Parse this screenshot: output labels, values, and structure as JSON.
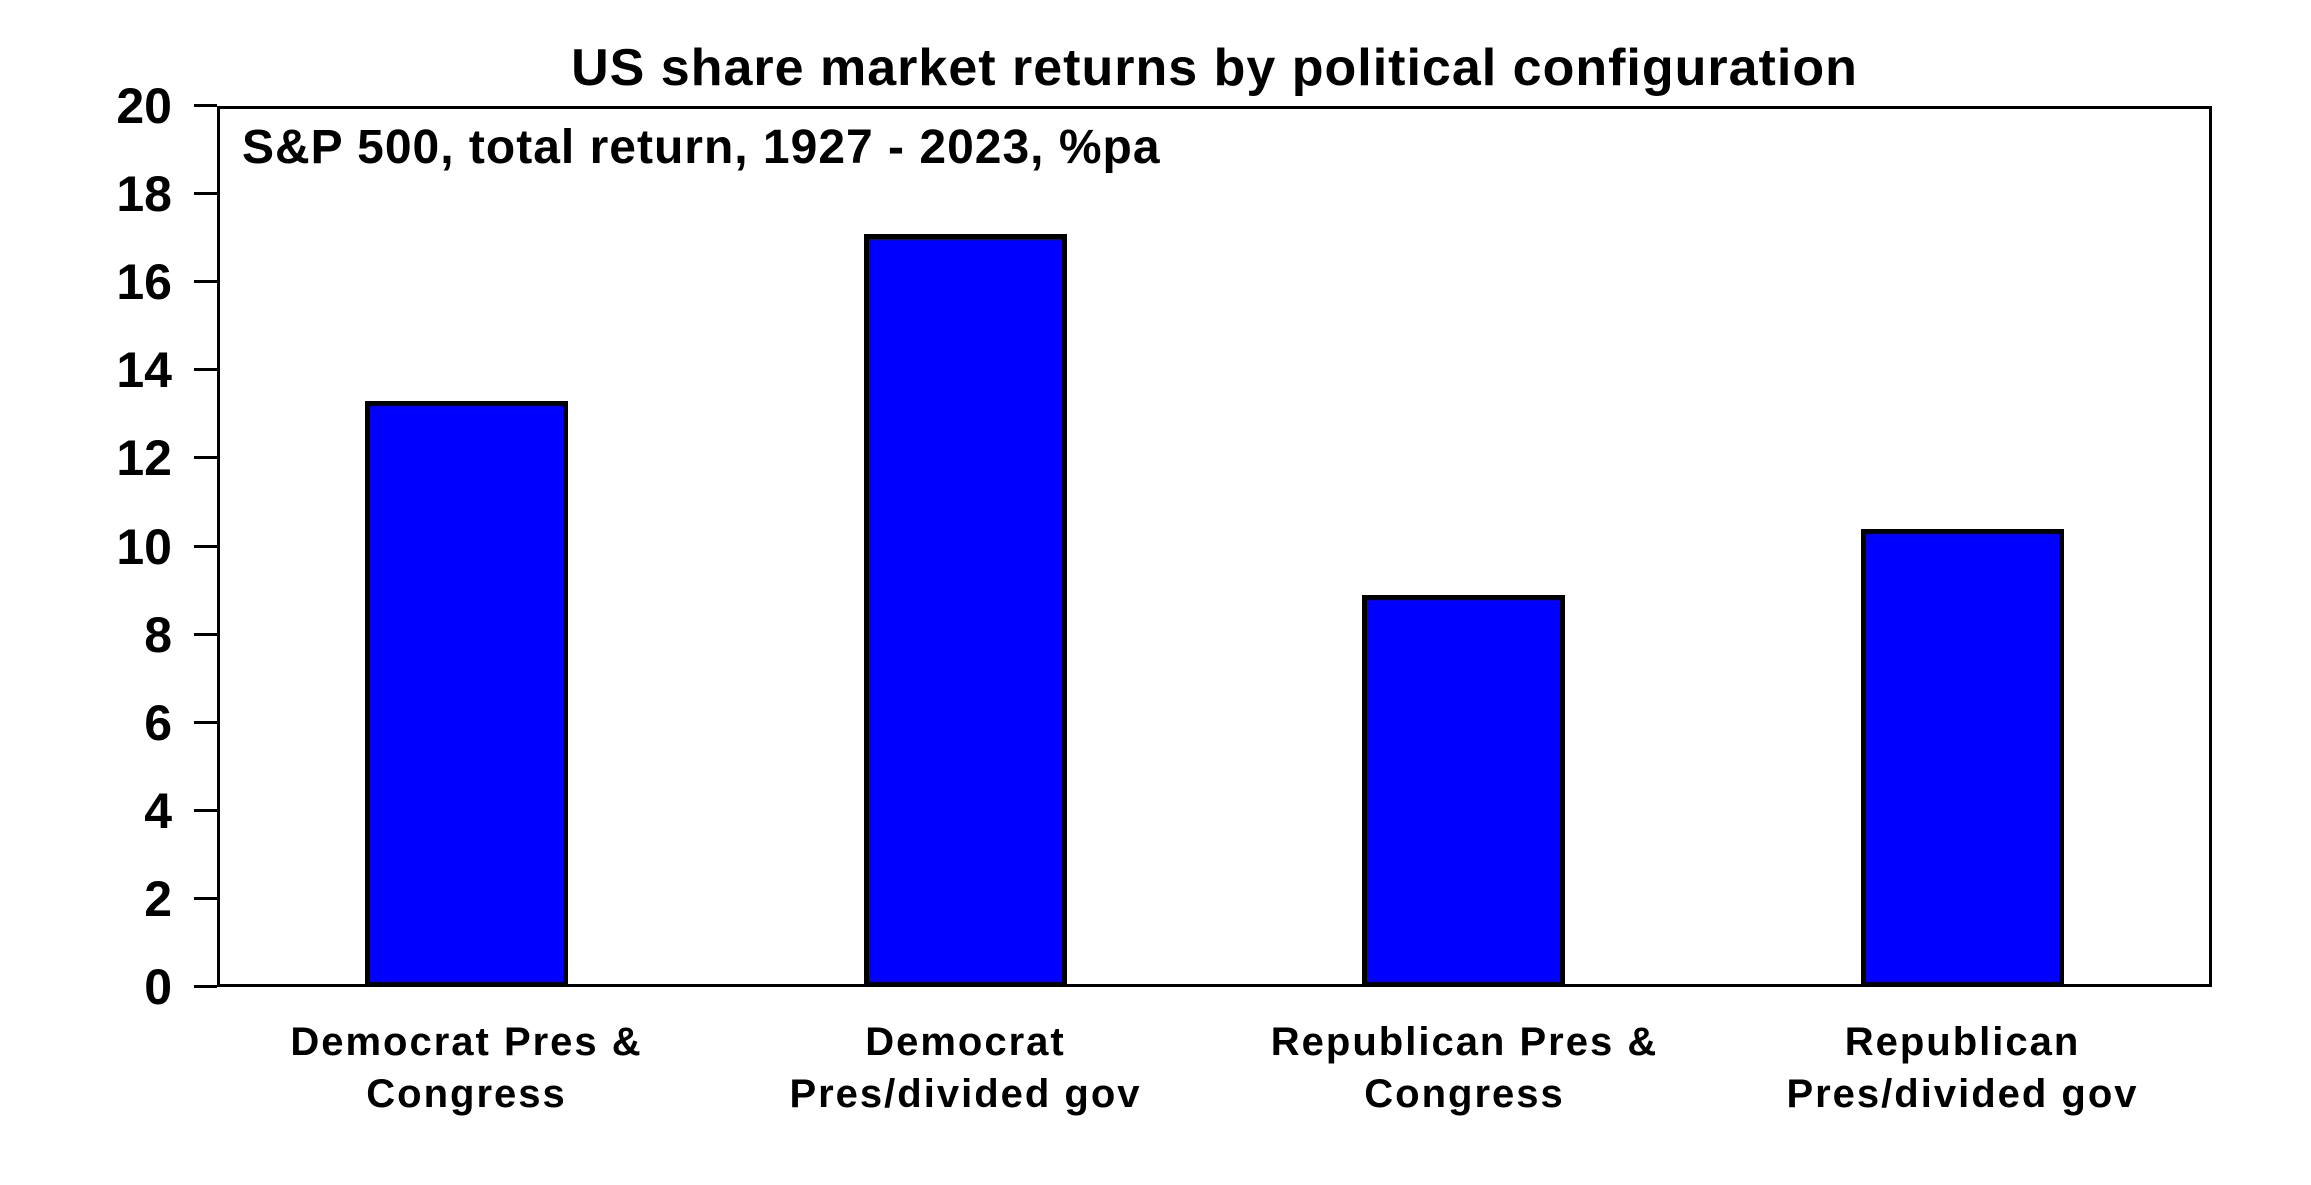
{
  "page": {
    "background": "#FFFFFF"
  },
  "chart_data": {
    "type": "bar",
    "title": "US share market returns by political configuration",
    "subtitle": "S&P 500, total return, 1927 - 2023, %pa",
    "categories": [
      "Democrat Pres &\nCongress",
      "Democrat\nPres/divided gov",
      "Republican Pres &\nCongress",
      "Republican\nPres/divided gov"
    ],
    "values": [
      13.3,
      17.1,
      8.9,
      10.4
    ],
    "xlabel": "",
    "ylabel": "",
    "ylim": [
      0,
      20
    ],
    "ytick_step": 2,
    "yticks": [
      0,
      2,
      4,
      6,
      8,
      10,
      12,
      14,
      16,
      18,
      20
    ],
    "grid": false,
    "legend": "none",
    "bar_color": "#0000FF",
    "bar_border_color": "#000000",
    "axis_color": "#000000",
    "text_color": "#000000"
  }
}
